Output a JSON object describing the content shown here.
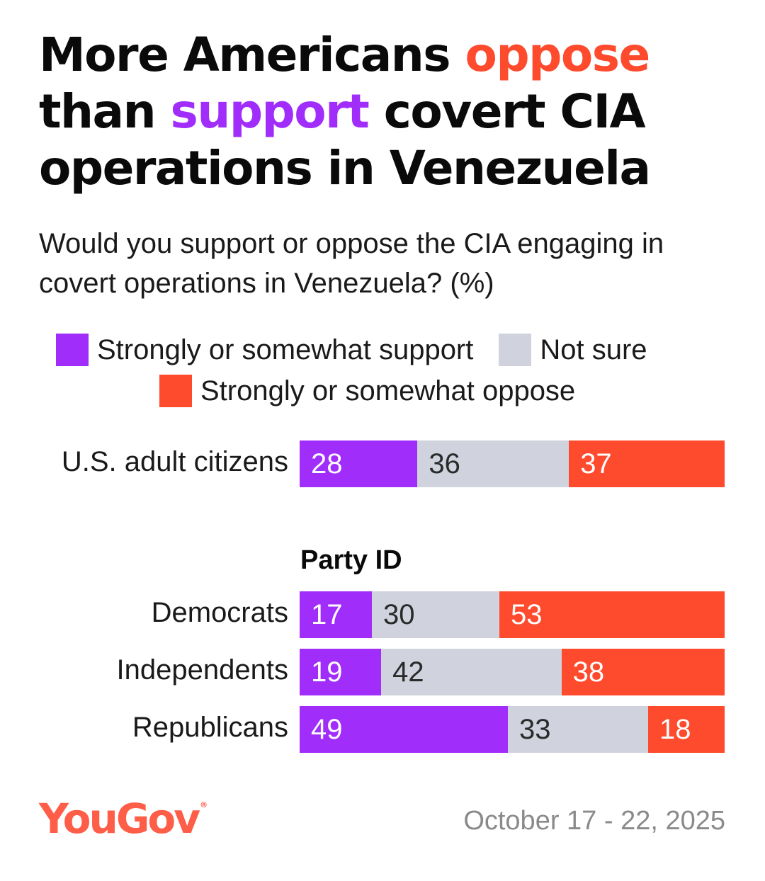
{
  "title": {
    "line1_a": "More Americans ",
    "line1_b": "oppose",
    "line2_a": "than ",
    "line2_b": "support",
    "line2_c": " covert CIA",
    "line3": "operations in Venezuela"
  },
  "subtitle": "Would you support or oppose the CIA engaging in covert operations in Venezuela? (%)",
  "legend": {
    "support": "Strongly or somewhat support",
    "unsure": "Not sure",
    "oppose": "Strongly or somewhat oppose"
  },
  "colors": {
    "support": "#a12dfb",
    "unsure": "#d0d3dd",
    "oppose": "#fe4a2d"
  },
  "group_heading": "Party ID",
  "chart_data": {
    "type": "bar",
    "orientation": "horizontal",
    "stacked": true,
    "unit": "%",
    "title": "More Americans oppose than support covert CIA operations in Venezuela",
    "subtitle": "Would you support or oppose the CIA engaging in covert operations in Venezuela? (%)",
    "categories": [
      "U.S. adult citizens",
      "Democrats",
      "Independents",
      "Republicans"
    ],
    "series": [
      {
        "name": "Strongly or somewhat support",
        "values": [
          28,
          17,
          19,
          49
        ]
      },
      {
        "name": "Not sure",
        "values": [
          36,
          30,
          42,
          33
        ]
      },
      {
        "name": "Strongly or somewhat oppose",
        "values": [
          37,
          53,
          38,
          18
        ]
      }
    ],
    "group_label": "Party ID",
    "legend_position": "top"
  },
  "footer": {
    "brand": "YouGov",
    "brand_mark": "®",
    "date": "October 17 - 22, 2025"
  }
}
